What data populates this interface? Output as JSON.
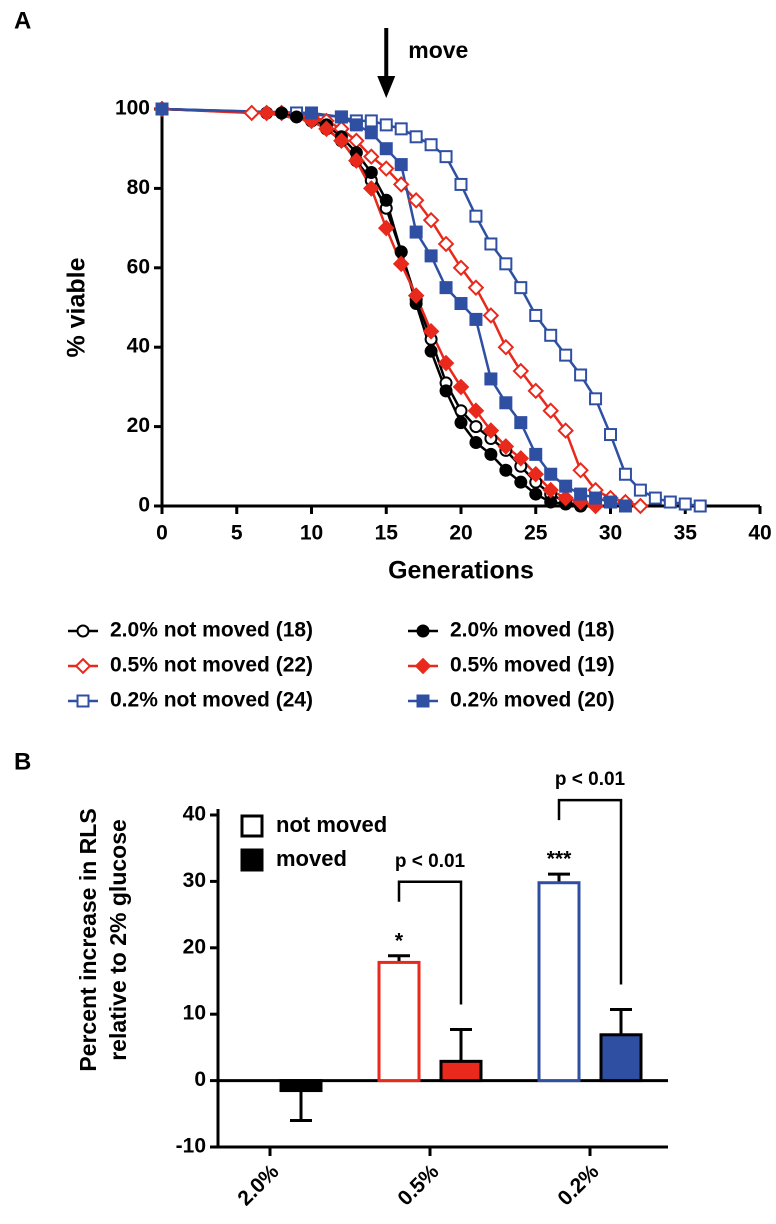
{
  "chart_data": [
    {
      "type": "line",
      "panel_label": "A",
      "xlabel": "Generations",
      "ylabel": "% viable",
      "xlim": [
        0,
        40
      ],
      "xticks": [
        0,
        5,
        10,
        15,
        20,
        25,
        30,
        35,
        40
      ],
      "ylim": [
        0,
        100
      ],
      "yticks": [
        0,
        20,
        40,
        60,
        80,
        100
      ],
      "annotation": {
        "text": "move",
        "x": 15
      },
      "legend": "bottom",
      "series": [
        {
          "name": "2.0% not moved (18)",
          "color": "#000000",
          "marker": "circle",
          "filled": false,
          "x": [
            0,
            7,
            10,
            11,
            12,
            13,
            14,
            15,
            16,
            17,
            18,
            19,
            20,
            21,
            22,
            23,
            24,
            25,
            26,
            27,
            28
          ],
          "values": [
            100,
            99,
            97,
            95,
            92,
            87,
            82,
            75,
            64,
            52,
            42,
            31,
            24,
            20,
            17,
            14,
            10,
            6,
            3,
            1,
            0
          ]
        },
        {
          "name": "0.5% not moved (22)",
          "color": "#e8291c",
          "marker": "diamond",
          "filled": false,
          "x": [
            0,
            6,
            8,
            10,
            11,
            12,
            13,
            14,
            15,
            16,
            17,
            18,
            19,
            20,
            21,
            22,
            23,
            24,
            25,
            26,
            27,
            28,
            29,
            30,
            31,
            32
          ],
          "values": [
            100,
            99,
            99,
            98,
            97,
            95,
            92,
            88,
            85,
            81,
            77,
            72,
            66,
            60,
            55,
            48,
            40,
            34,
            29,
            24,
            19,
            9,
            4,
            2,
            1,
            0
          ]
        },
        {
          "name": "0.2% not moved (24)",
          "color": "#2f4fa3",
          "marker": "square",
          "filled": false,
          "x": [
            0,
            9,
            12,
            13,
            14,
            15,
            16,
            17,
            18,
            19,
            20,
            21,
            22,
            23,
            24,
            25,
            26,
            27,
            28,
            29,
            30,
            31,
            32,
            33,
            34,
            35,
            36
          ],
          "values": [
            100,
            99,
            98,
            97,
            97,
            96,
            95,
            93,
            91,
            88,
            81,
            73,
            66,
            61,
            55,
            48,
            43,
            38,
            33,
            27,
            18,
            8,
            4,
            2,
            1,
            0.5,
            0
          ]
        },
        {
          "name": "2.0% moved (18)",
          "color": "#000000",
          "marker": "circle",
          "filled": true,
          "x": [
            0,
            8,
            9,
            10,
            11,
            12,
            13,
            14,
            15,
            16,
            17,
            18,
            19,
            20,
            21,
            22,
            23,
            24,
            25,
            26,
            27,
            28
          ],
          "values": [
            100,
            99,
            98,
            97,
            96,
            93,
            89,
            84,
            77,
            64,
            51,
            39,
            29,
            21,
            16,
            13,
            9,
            6,
            3,
            1,
            0.5,
            0
          ]
        },
        {
          "name": "0.5% moved (19)",
          "color": "#e8291c",
          "marker": "diamond",
          "filled": true,
          "x": [
            0,
            7,
            10,
            11,
            12,
            13,
            14,
            15,
            16,
            17,
            18,
            19,
            20,
            21,
            22,
            23,
            24,
            25,
            26,
            27,
            28,
            29
          ],
          "values": [
            100,
            99,
            97,
            95,
            92,
            87,
            80,
            70,
            61,
            53,
            44,
            36,
            30,
            24,
            19,
            15,
            12,
            8,
            4,
            2,
            1,
            0
          ]
        },
        {
          "name": "0.2% moved (20)",
          "color": "#2f4fa3",
          "marker": "square",
          "filled": true,
          "x": [
            0,
            10,
            12,
            13,
            14,
            15,
            16,
            17,
            18,
            19,
            20,
            21,
            22,
            23,
            24,
            25,
            26,
            27,
            28,
            29,
            30,
            31
          ],
          "values": [
            100,
            99,
            98,
            96,
            94,
            90,
            86,
            69,
            63,
            55,
            51,
            47,
            32,
            26,
            21,
            13,
            8,
            5,
            3,
            2,
            1,
            0
          ]
        }
      ]
    },
    {
      "type": "bar",
      "panel_label": "B",
      "ylabel": [
        "Percent increase in RLS",
        "relative to 2% glucose"
      ],
      "categories": [
        "2.0%",
        "0.5%",
        "0.2%"
      ],
      "category_colors": [
        "#000000",
        "#e8291c",
        "#2f4fa3"
      ],
      "ylim": [
        -10,
        40
      ],
      "yticks": [
        -10,
        0,
        10,
        20,
        30,
        40
      ],
      "legend": "top-left",
      "significance_labels": [
        null,
        "*",
        "***"
      ],
      "comparison_labels": [
        null,
        "p < 0.01",
        "p < 0.01"
      ],
      "series": [
        {
          "name": "not moved",
          "color": "#000000",
          "filled": false,
          "values": [
            null,
            17.8,
            29.8
          ],
          "errors": [
            null,
            1.0,
            1.3
          ]
        },
        {
          "name": "moved",
          "color": "#000000",
          "filled": true,
          "values": [
            -1.5,
            2.9,
            6.9
          ],
          "errors": [
            4.5,
            4.8,
            3.8
          ]
        }
      ]
    }
  ]
}
